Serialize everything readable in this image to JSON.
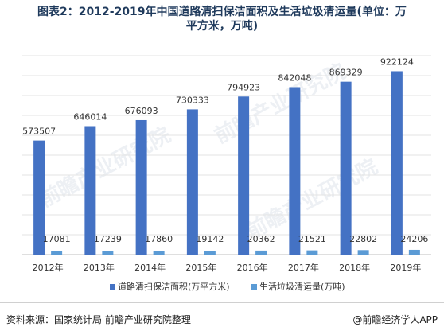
{
  "chart_data": {
    "type": "bar",
    "title_line1": "图表2：2012-2019年中国道路清扫保洁面积及生活垃圾清运量(单位：万",
    "title_line2": "平方米，万吨)",
    "categories": [
      "2012年",
      "2013年",
      "2014年",
      "2015年",
      "2016年",
      "2017年",
      "2018年",
      "2019年"
    ],
    "series": [
      {
        "name": "道路清扫保洁面积(万平方米)",
        "color": "#4472c4",
        "values": [
          573507,
          646014,
          676093,
          730333,
          794923,
          842048,
          869329,
          922124
        ]
      },
      {
        "name": "生活垃圾清运量(万吨)",
        "color": "#5b9bd5",
        "values": [
          17081,
          17239,
          17860,
          19142,
          20362,
          21521,
          22802,
          24206
        ]
      }
    ],
    "ylim": [
      0,
      1000000
    ],
    "grid": true,
    "legend_position": "bottom"
  },
  "footer": {
    "source": "资料来源：国家统计局 前瞻产业研究院整理",
    "brand": "前瞻经济学人APP"
  },
  "watermark": "前瞻产业研究院"
}
